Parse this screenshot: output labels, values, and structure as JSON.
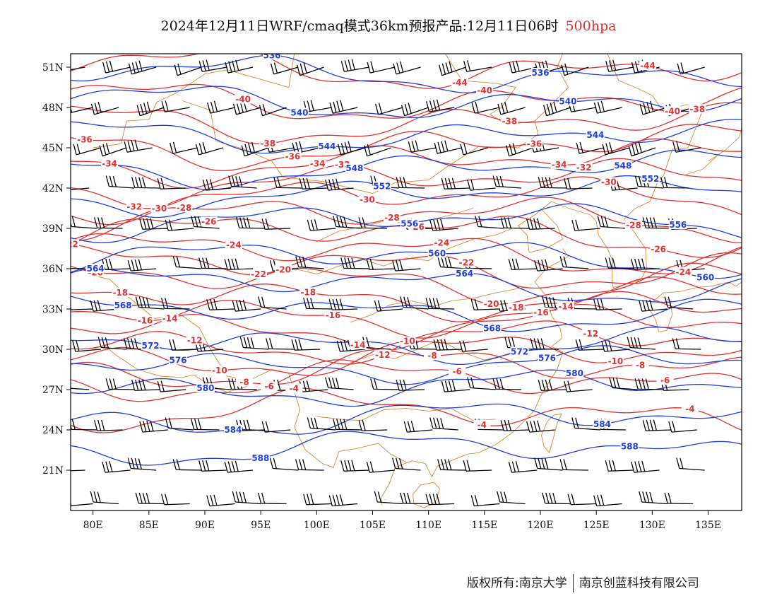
{
  "title": {
    "main": "2024年12月11日WRF/cmaq模式36km预报产品:12月11日06时",
    "level": "500hpa"
  },
  "copyright": {
    "left": "版权所有:南京大学",
    "right": "南京创蓝科技有限公司"
  },
  "colors": {
    "height_contour": "#1f3fe0",
    "temperature_contour": "#e03232",
    "wind_barb": "#000000",
    "coastline": "#d98a2e",
    "title_level": "#e03030"
  },
  "axes": {
    "lat_labels": [
      "51N",
      "48N",
      "45N",
      "42N",
      "39N",
      "36N",
      "33N",
      "30N",
      "27N",
      "24N",
      "21N"
    ],
    "lon_labels": [
      "80E",
      "85E",
      "90E",
      "95E",
      "100E",
      "105E",
      "110E",
      "115E",
      "120E",
      "125E",
      "130E",
      "135E"
    ],
    "lon_range": [
      78,
      138
    ],
    "lat_range": [
      18,
      52
    ]
  },
  "height_lines": [
    {
      "label": "536",
      "lat": 50.5
    },
    {
      "label": "540",
      "lat": 48.5
    },
    {
      "label": "544",
      "lat": 46.0
    },
    {
      "label": "548",
      "lat": 43.5
    },
    {
      "label": "552",
      "lat": 41.5
    },
    {
      "label": "556",
      "lat": 39.5
    },
    {
      "label": "560",
      "lat": 36.8
    },
    {
      "label": "564",
      "lat": 34.8
    },
    {
      "label": "568",
      "lat": 32.8
    },
    {
      "label": "572",
      "lat": 30.5
    },
    {
      "label": "576",
      "lat": 29.0
    },
    {
      "label": "580",
      "lat": 27.2
    },
    {
      "label": "584",
      "lat": 24.8
    },
    {
      "label": "588",
      "lat": 22.5
    }
  ],
  "temperature_lines": [
    {
      "label": "-44",
      "lat": 51.0
    },
    {
      "label": "-40",
      "lat": 48.6
    },
    {
      "label": "-38",
      "lat": 47.0
    },
    {
      "label": "-36",
      "lat": 45.2
    },
    {
      "label": "-34",
      "lat": 44.0
    },
    {
      "label": "-32",
      "lat": 42.5
    },
    {
      "label": "-30",
      "lat": 41.2
    },
    {
      "label": "-28",
      "lat": 39.8
    },
    {
      "label": "-26",
      "lat": 38.6
    },
    {
      "label": "-24",
      "lat": 37.2
    },
    {
      "label": "-22",
      "lat": 36.2
    },
    {
      "label": "-20",
      "lat": 35.2
    },
    {
      "label": "-18",
      "lat": 34.0
    },
    {
      "label": "-16",
      "lat": 32.8
    },
    {
      "label": "-14",
      "lat": 31.8
    },
    {
      "label": "-12",
      "lat": 30.6
    },
    {
      "label": "-10",
      "lat": 29.5
    },
    {
      "label": "-8",
      "lat": 28.5
    },
    {
      "label": "-6",
      "lat": 27.5
    },
    {
      "label": "-4",
      "lat": 25.2
    }
  ],
  "map_data": {
    "wind_rows_lat": [
      51,
      48,
      45,
      42,
      39,
      36,
      33,
      30,
      27,
      24,
      21,
      18.5
    ],
    "wind_cols_lon": [
      80,
      83,
      86,
      89,
      92,
      95,
      98,
      101,
      104,
      107,
      110,
      113,
      116,
      119,
      122,
      125,
      128,
      131,
      134
    ]
  }
}
